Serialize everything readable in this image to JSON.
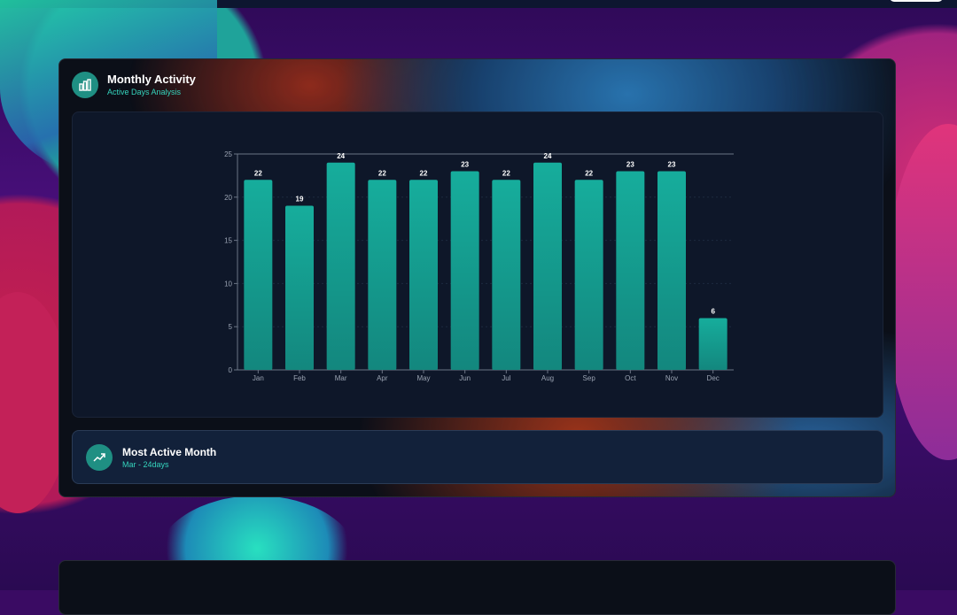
{
  "card": {
    "title": "Monthly Activity",
    "subtitle": "Active Days Analysis",
    "icon": "bar-chart-icon"
  },
  "summary": {
    "title": "Most Active Month",
    "value": "Mar - 24days",
    "icon": "trending-up-icon"
  },
  "colors": {
    "bar_top": "#16ad9c",
    "bar_bottom": "#13877e",
    "accent": "#35d4bd",
    "panel": "#0e1729"
  },
  "chart_data": {
    "type": "bar",
    "categories": [
      "Jan",
      "Feb",
      "Mar",
      "Apr",
      "May",
      "Jun",
      "Jul",
      "Aug",
      "Sep",
      "Oct",
      "Nov",
      "Dec"
    ],
    "values": [
      22,
      19,
      24,
      22,
      22,
      23,
      22,
      24,
      22,
      23,
      23,
      6
    ],
    "yticks": [
      0,
      5,
      10,
      15,
      20,
      25
    ],
    "ylim": [
      0,
      25
    ],
    "title": "",
    "xlabel": "",
    "ylabel": "",
    "grid": true,
    "data_labels": true
  }
}
